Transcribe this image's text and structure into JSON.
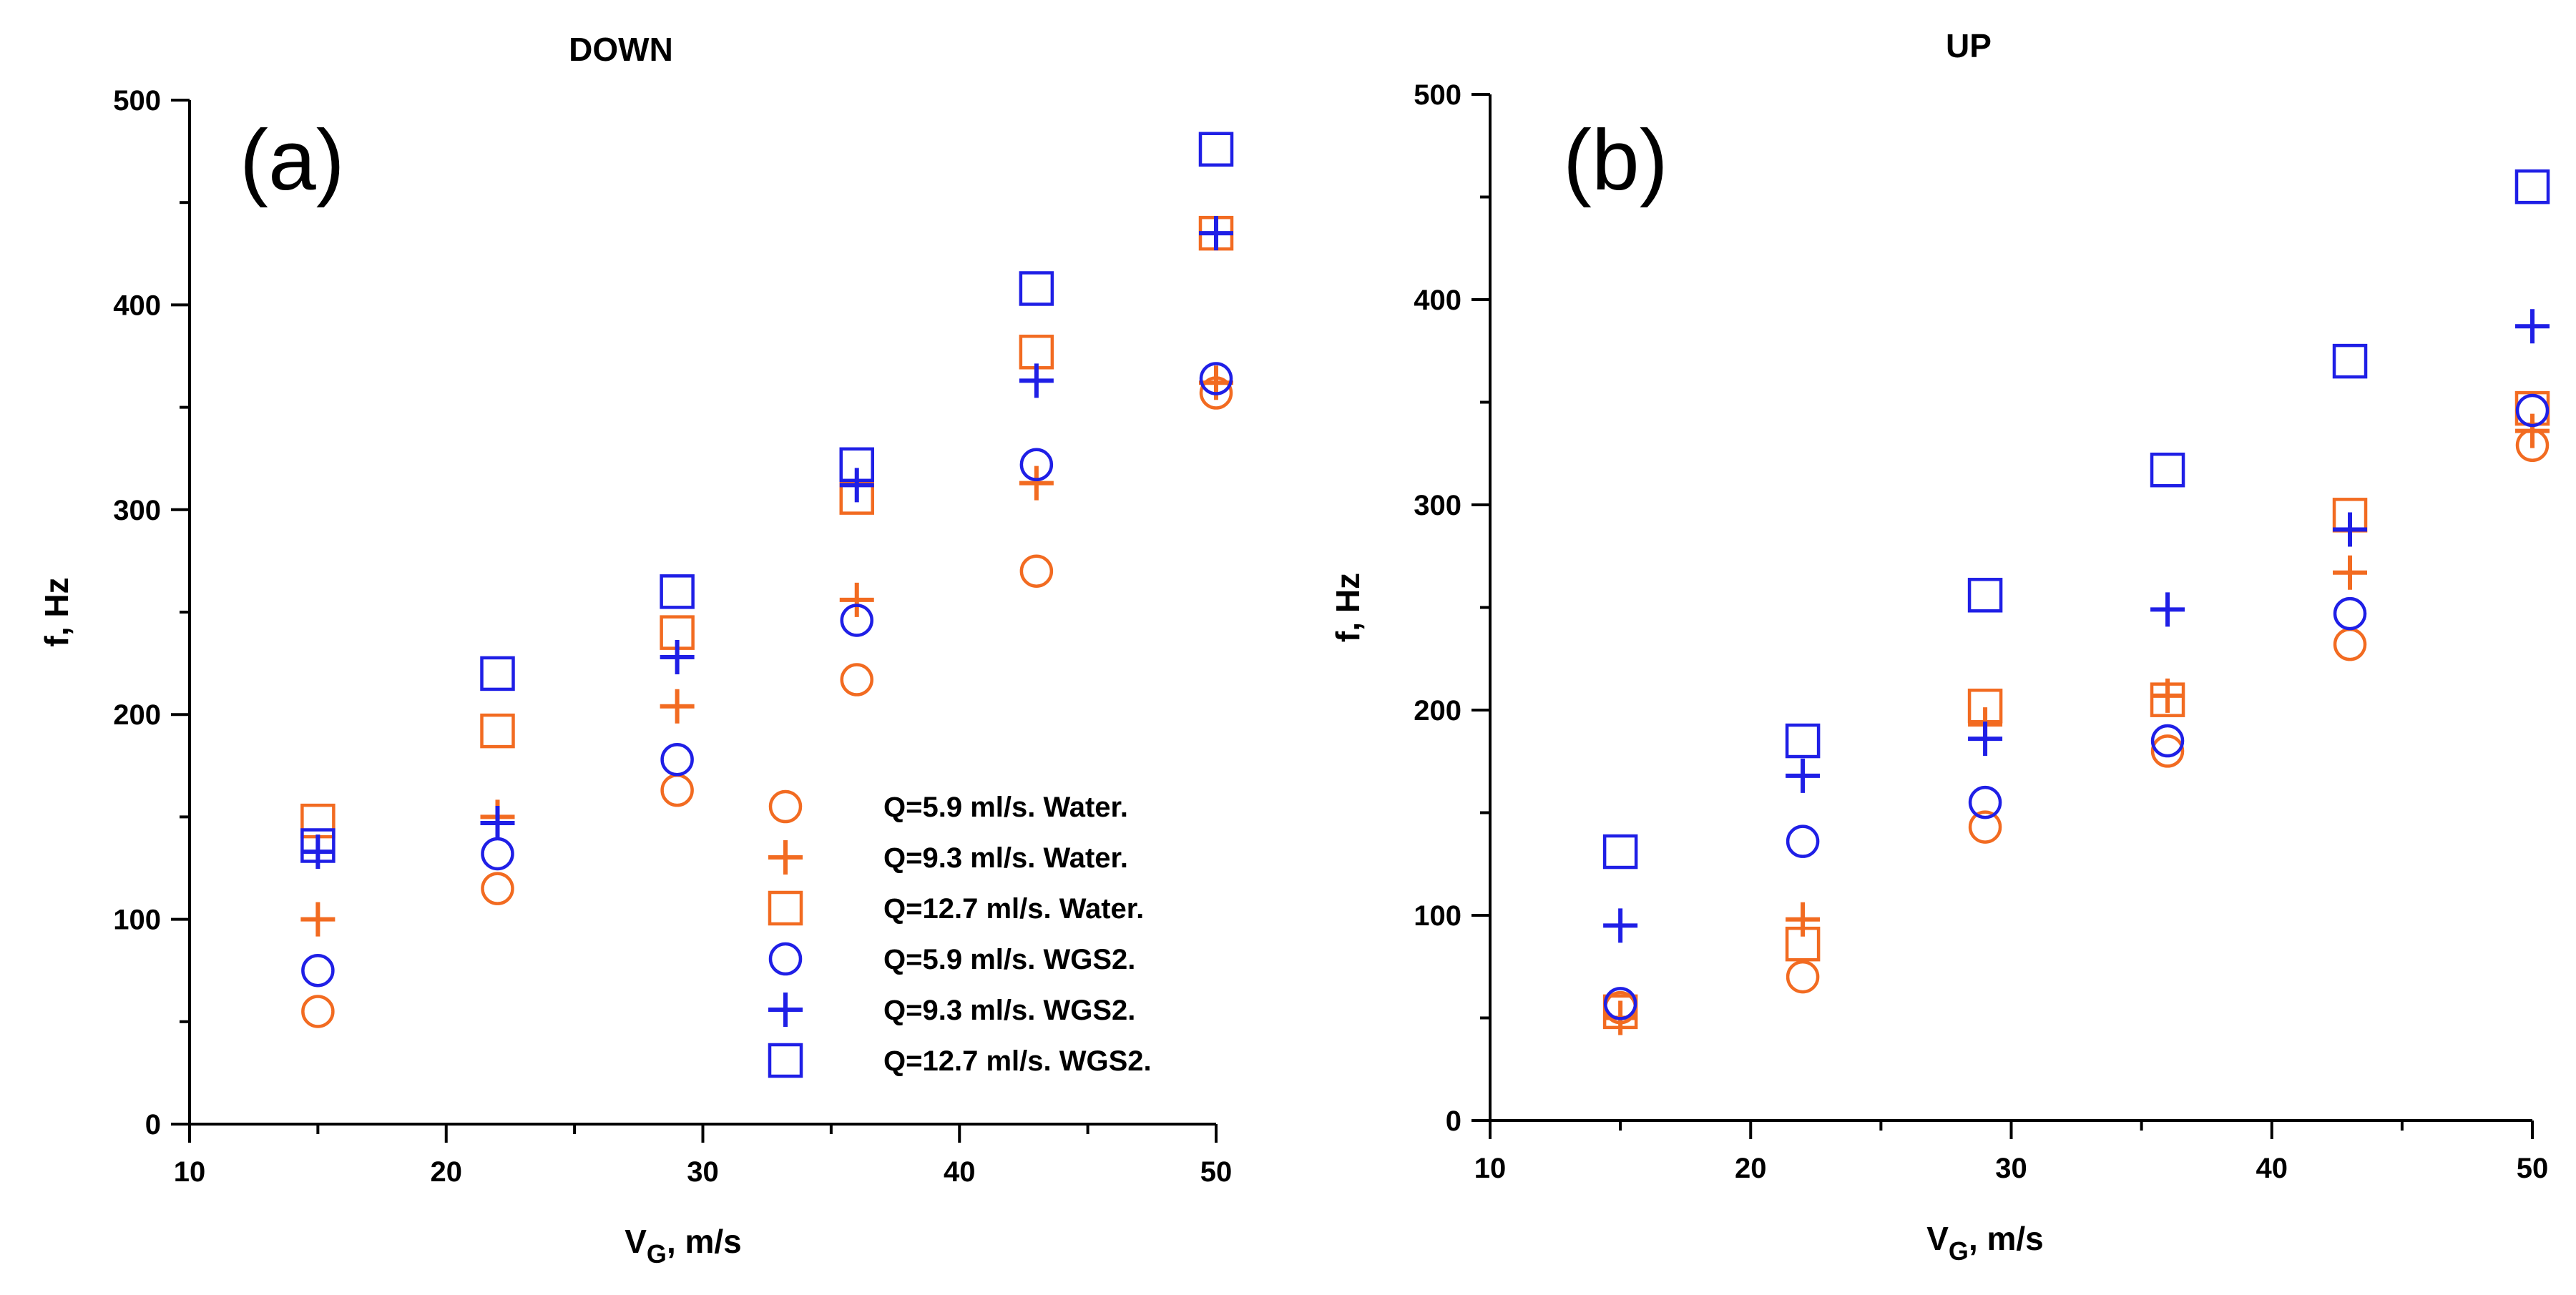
{
  "colors": {
    "water": "#f26b21",
    "wgs2": "#1f1fe6",
    "axis": "#000000"
  },
  "chart_data": [
    {
      "type": "scatter",
      "id": "a",
      "panel_label": "(a)",
      "title": "DOWN",
      "xlabel_main": "V",
      "xlabel_sub": "G",
      "xlabel_rest": ", m/s",
      "ylabel": "f, Hz",
      "xlim": [
        10,
        50
      ],
      "ylim": [
        0,
        500
      ],
      "xticks": [
        10,
        20,
        30,
        40,
        50
      ],
      "yticks": [
        0,
        100,
        200,
        300,
        400,
        500
      ],
      "x_minor_step": 5,
      "y_minor_step": 50,
      "legend_position": "lower-right",
      "series": [
        {
          "name": "Q=5.9 ml/s. Water.",
          "color_key": "water",
          "marker": "circle",
          "x": [
            15,
            22,
            29,
            36,
            43,
            50
          ],
          "y": [
            55,
            115,
            163,
            217,
            270,
            357
          ]
        },
        {
          "name": "Q=9.3 ml/s. Water.",
          "color_key": "water",
          "marker": "plus",
          "x": [
            15,
            22,
            29,
            36,
            43,
            50
          ],
          "y": [
            100,
            150,
            204,
            256,
            313,
            362
          ]
        },
        {
          "name": "Q=12.7 ml/s. Water.",
          "color_key": "water",
          "marker": "square",
          "x": [
            15,
            22,
            29,
            36,
            43,
            50
          ],
          "y": [
            148,
            192,
            240,
            306,
            377,
            435
          ]
        },
        {
          "name": "Q=5.9 ml/s. WGS2.",
          "color_key": "wgs2",
          "marker": "circle",
          "x": [
            15,
            22,
            29,
            36,
            43,
            50
          ],
          "y": [
            75,
            132,
            178,
            246,
            322,
            364
          ]
        },
        {
          "name": "Q=9.3 ml/s. WGS2.",
          "color_key": "wgs2",
          "marker": "plus",
          "x": [
            15,
            22,
            29,
            36,
            43,
            50
          ],
          "y": [
            133,
            147,
            228,
            312,
            363,
            435
          ]
        },
        {
          "name": "Q=12.7 ml/s. WGS2.",
          "color_key": "wgs2",
          "marker": "square",
          "x": [
            15,
            22,
            29,
            36,
            43,
            50
          ],
          "y": [
            136,
            220,
            260,
            322,
            408,
            476
          ]
        }
      ]
    },
    {
      "type": "scatter",
      "id": "b",
      "panel_label": "(b)",
      "title": "UP",
      "xlabel_main": "V",
      "xlabel_sub": "G",
      "xlabel_rest": ", m/s",
      "ylabel": "f, Hz",
      "xlim": [
        10,
        50
      ],
      "ylim": [
        0,
        500
      ],
      "xticks": [
        10,
        20,
        30,
        40,
        50
      ],
      "yticks": [
        0,
        100,
        200,
        300,
        400,
        500
      ],
      "x_minor_step": 5,
      "y_minor_step": 50,
      "legend_position": "none",
      "series": [
        {
          "name": "Q=5.9 ml/s. Water.",
          "color_key": "water",
          "marker": "circle",
          "x": [
            15,
            22,
            29,
            36,
            43,
            50
          ],
          "y": [
            55,
            70,
            143,
            180,
            232,
            329
          ]
        },
        {
          "name": "Q=9.3 ml/s. Water.",
          "color_key": "water",
          "marker": "plus",
          "x": [
            15,
            22,
            29,
            36,
            43,
            50
          ],
          "y": [
            50,
            98,
            193,
            207,
            267,
            336
          ]
        },
        {
          "name": "Q=12.7 ml/s. Water.",
          "color_key": "water",
          "marker": "square",
          "x": [
            15,
            22,
            29,
            36,
            43,
            50
          ],
          "y": [
            53,
            86,
            202,
            205,
            295,
            347
          ]
        },
        {
          "name": "Q=5.9 ml/s. WGS2.",
          "color_key": "wgs2",
          "marker": "circle",
          "x": [
            15,
            22,
            29,
            36,
            43,
            50
          ],
          "y": [
            57,
            136,
            155,
            185,
            247,
            346
          ]
        },
        {
          "name": "Q=9.3 ml/s. WGS2.",
          "color_key": "wgs2",
          "marker": "plus",
          "x": [
            15,
            22,
            29,
            36,
            43,
            50
          ],
          "y": [
            95,
            168,
            186,
            249,
            288,
            387
          ]
        },
        {
          "name": "Q=12.7 ml/s. WGS2.",
          "color_key": "wgs2",
          "marker": "square",
          "x": [
            15,
            22,
            29,
            36,
            43,
            50
          ],
          "y": [
            131,
            185,
            256,
            317,
            370,
            455
          ]
        }
      ]
    }
  ]
}
